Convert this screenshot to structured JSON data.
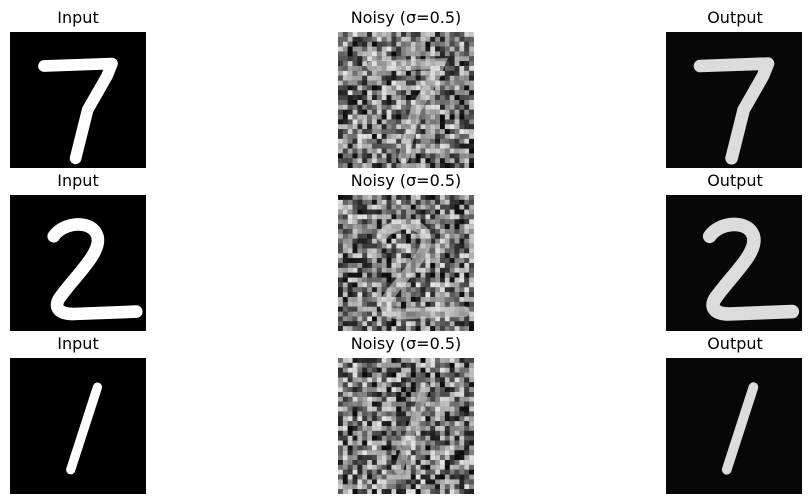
{
  "rows": [
    {
      "digit": "7",
      "titles": {
        "input": "Input",
        "noisy": "Noisy (σ=0.5)",
        "output": "Output"
      }
    },
    {
      "digit": "2",
      "titles": {
        "input": "Input",
        "noisy": "Noisy (σ=0.5)",
        "output": "Output"
      }
    },
    {
      "digit": "1",
      "titles": {
        "input": "Input",
        "noisy": "Noisy (σ=0.5)",
        "output": "Output"
      }
    }
  ],
  "colors": {
    "background": "#000000",
    "stroke": "#ffffff"
  }
}
